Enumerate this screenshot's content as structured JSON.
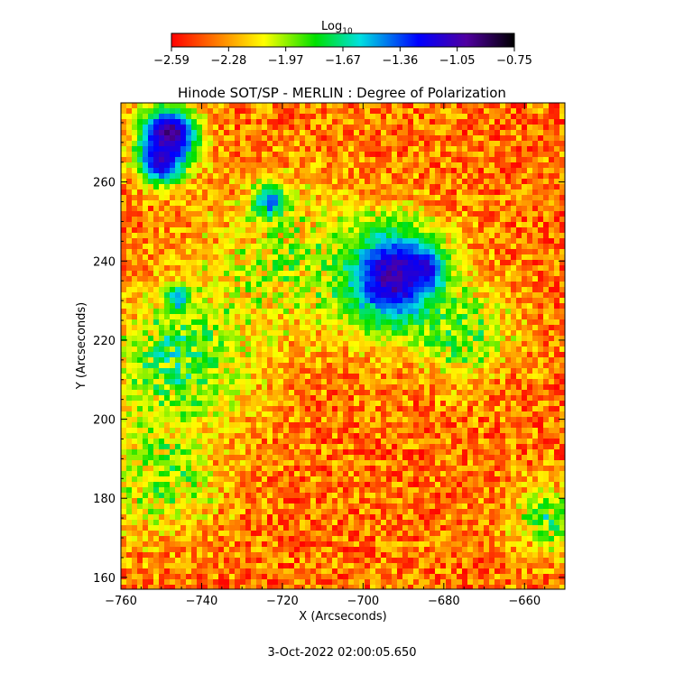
{
  "chart_data": {
    "type": "heatmap",
    "title": "Hinode SOT/SP - MERLIN : Degree of Polarization",
    "xlabel": "X (Arcseconds)",
    "ylabel": "Y (Arcseconds)",
    "xlim": [
      -760,
      -650
    ],
    "ylim": [
      157,
      280
    ],
    "x_ticks": [
      -760,
      -740,
      -720,
      -700,
      -680,
      -660
    ],
    "y_ticks": [
      160,
      180,
      200,
      220,
      240,
      260
    ],
    "colorbar": {
      "label_base": "Log",
      "label_sub": "10",
      "range": [
        -2.59,
        -0.75
      ],
      "ticks": [
        "-2.59",
        "-2.28",
        "-1.97",
        "-1.67",
        "-1.36",
        "-1.05",
        "-0.75"
      ],
      "colors": [
        "#ff0000",
        "#ff8000",
        "#ffff00",
        "#00e000",
        "#00e0e0",
        "#0000ff",
        "#4000a0",
        "#000000"
      ]
    },
    "timestamp": "3-Oct-2022 02:00:05.650",
    "features": [
      {
        "type": "spot",
        "x": -693,
        "y": 236,
        "r": 9,
        "value": -0.9
      },
      {
        "type": "spot",
        "x": -685,
        "y": 238,
        "r": 3,
        "value": -1.1
      },
      {
        "type": "spot",
        "x": -748,
        "y": 272,
        "r": 5,
        "value": -0.9
      },
      {
        "type": "spot",
        "x": -750,
        "y": 265,
        "r": 4,
        "value": -1.1
      },
      {
        "type": "spot",
        "x": -723,
        "y": 255,
        "r": 3,
        "value": -1.1
      },
      {
        "type": "spot",
        "x": -746,
        "y": 231,
        "r": 2,
        "value": -1.2
      },
      {
        "type": "plage",
        "x": -745,
        "y": 215,
        "r": 12,
        "value": -1.6
      },
      {
        "type": "plage",
        "x": -750,
        "y": 185,
        "r": 10,
        "value": -1.8
      },
      {
        "type": "plage",
        "x": -720,
        "y": 240,
        "r": 14,
        "value": -1.9
      },
      {
        "type": "plage",
        "x": -675,
        "y": 222,
        "r": 8,
        "value": -1.7
      },
      {
        "type": "plage",
        "x": -655,
        "y": 175,
        "r": 6,
        "value": -1.7
      }
    ]
  }
}
